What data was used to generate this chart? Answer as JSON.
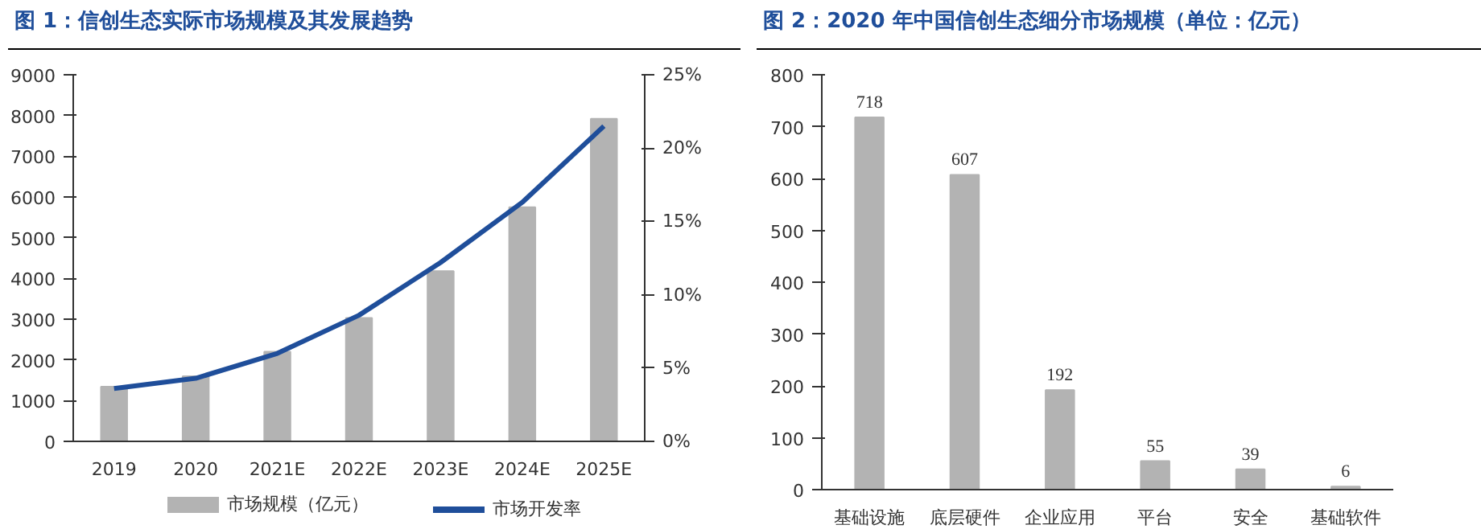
{
  "chart_data": [
    {
      "type": "bar",
      "title": "图 1：信创生态实际市场规模及其发展趋势",
      "categories": [
        "2019",
        "2020",
        "2021E",
        "2022E",
        "2023E",
        "2024E",
        "2025E"
      ],
      "series": [
        {
          "name": "市场规模（亿元）",
          "type": "bar",
          "color": "#b3b3b3",
          "values": [
            1340,
            1600,
            2200,
            3030,
            4180,
            5750,
            7920
          ]
        },
        {
          "name": "市场开发率",
          "type": "line",
          "axis": "y2",
          "color": "#1f4e9a",
          "values": [
            3.6,
            4.3,
            6.0,
            8.6,
            12.2,
            16.3,
            21.5
          ]
        }
      ],
      "ylim": [
        0,
        9000
      ],
      "yticks": [
        0,
        1000,
        2000,
        3000,
        4000,
        5000,
        6000,
        7000,
        8000,
        9000
      ],
      "y2lim": [
        0,
        25
      ],
      "y2ticks": [
        {
          "value": 0,
          "label": "0%"
        },
        {
          "value": 5,
          "label": "5%"
        },
        {
          "value": 10,
          "label": "10%"
        },
        {
          "value": 15,
          "label": "15%"
        },
        {
          "value": 20,
          "label": "20%"
        },
        {
          "value": 25,
          "label": "25%"
        }
      ],
      "legend": "bottom",
      "grid": false,
      "marker": "none",
      "line_style": "solid"
    },
    {
      "type": "bar",
      "title": "图 2：2020 年中国信创生态细分市场规模（单位：亿元）",
      "categories": [
        "基础设施",
        "底层硬件",
        "企业应用",
        "平台",
        "安全",
        "基础软件"
      ],
      "values": [
        718,
        607,
        192,
        55,
        39,
        6
      ],
      "color": "#b3b3b3",
      "data_labels": true,
      "ylim": [
        0,
        800
      ],
      "yticks": [
        0,
        100,
        200,
        300,
        400,
        500,
        600,
        700,
        800
      ],
      "grid": false,
      "legend": false
    }
  ]
}
